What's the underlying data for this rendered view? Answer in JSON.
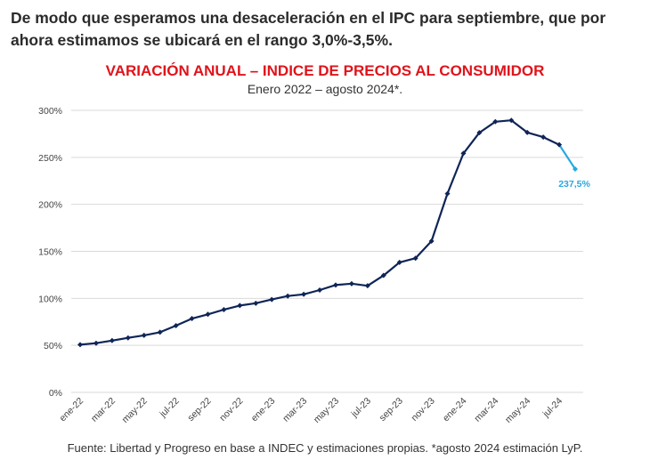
{
  "header": {
    "headline": "De modo que esperamos una desaceleración en el IPC para septiembre, que por ahora estimamos se ubicará en el rango 3,0%-3,5%."
  },
  "chart_data": {
    "type": "line",
    "title": "VARIACIÓN ANUAL – INDICE DE PRECIOS AL CONSUMIDOR",
    "subtitle": "Enero 2022 – agosto 2024*.",
    "xlabel": "",
    "ylabel": "",
    "ylim": [
      0,
      300
    ],
    "y_ticks": [
      "0%",
      "50%",
      "100%",
      "150%",
      "200%",
      "250%",
      "300%"
    ],
    "y_tick_values": [
      0,
      50,
      100,
      150,
      200,
      250,
      300
    ],
    "grid": true,
    "x": [
      "ene-22",
      "feb-22",
      "mar-22",
      "abr-22",
      "may-22",
      "jun-22",
      "jul-22",
      "ago-22",
      "sep-22",
      "oct-22",
      "nov-22",
      "dic-22",
      "ene-23",
      "feb-23",
      "mar-23",
      "abr-23",
      "may-23",
      "jun-23",
      "jul-23",
      "ago-23",
      "sep-23",
      "oct-23",
      "nov-23",
      "dic-23",
      "ene-24",
      "feb-24",
      "mar-24",
      "abr-24",
      "may-24",
      "jun-24",
      "jul-24",
      "ago-24"
    ],
    "x_tick_labels": [
      "ene-22",
      "mar-22",
      "may-22",
      "jul-22",
      "sep-22",
      "nov-22",
      "ene-23",
      "mar-23",
      "may-23",
      "jul-23",
      "sep-23",
      "nov-23",
      "ene-24",
      "mar-24",
      "may-24",
      "jul-24"
    ],
    "series": [
      {
        "values": [
          50.7,
          52.3,
          55.1,
          58.0,
          60.7,
          64.0,
          71.0,
          78.5,
          83.0,
          88.0,
          92.4,
          94.8,
          98.8,
          102.5,
          104.3,
          108.8,
          114.2,
          115.6,
          113.4,
          124.4,
          138.3,
          142.7,
          160.9,
          211.4,
          254.2,
          276.2,
          287.9,
          289.4,
          276.4,
          271.5,
          263.4,
          237.5
        ],
        "color": "#0f2557",
        "estimate_color": "#27a8e0"
      }
    ],
    "annotations": [
      {
        "label": "237,5%",
        "index": 31,
        "color": "#27a8e0"
      }
    ]
  },
  "footer": {
    "source": "Fuente: Libertad y Progreso en base a INDEC y estimaciones propias. *agosto 2024 estimación LyP."
  }
}
